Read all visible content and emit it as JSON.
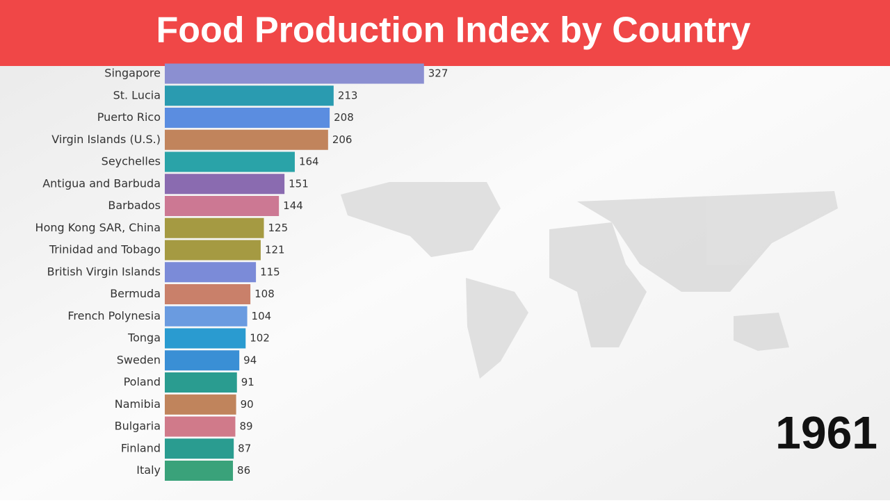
{
  "chart_data": {
    "type": "bar",
    "orientation": "horizontal",
    "title": "Food Production Index by Country",
    "annotation": "1961",
    "categories": [
      "Singapore",
      "St. Lucia",
      "Puerto Rico",
      "Virgin Islands (U.S.)",
      "Seychelles",
      "Antigua and Barbuda",
      "Barbados",
      "Hong Kong SAR, China",
      "Trinidad and Tobago",
      "British Virgin Islands",
      "Bermuda",
      "French Polynesia",
      "Tonga",
      "Sweden",
      "Poland",
      "Namibia",
      "Bulgaria",
      "Finland",
      "Italy"
    ],
    "values": [
      327,
      213,
      208,
      206,
      164,
      151,
      144,
      125,
      121,
      115,
      108,
      104,
      102,
      94,
      91,
      90,
      89,
      87,
      86
    ],
    "colors": [
      "#8b8fd1",
      "#2a9bb0",
      "#5b8de0",
      "#c1845c",
      "#2aa3a8",
      "#8a6bb0",
      "#cc7893",
      "#a59a42",
      "#a59a42",
      "#7b8bd8",
      "#c9806a",
      "#6a9be0",
      "#2a9bd0",
      "#3a8fd5",
      "#2a9c90",
      "#c0845c",
      "#d07a8a",
      "#2a9c90",
      "#3aa27a"
    ]
  }
}
